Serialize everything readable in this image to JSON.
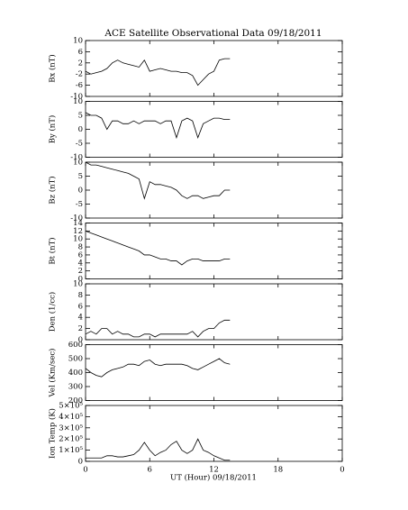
{
  "chart_data": [
    {
      "type": "line",
      "title": "ACE Satellite Observational Data  09/18/2011",
      "ylabel": "Bx (nT)",
      "x": [
        0,
        0.5,
        1,
        1.5,
        2,
        2.5,
        3,
        3.5,
        4,
        4.5,
        5,
        5.5,
        6,
        6.5,
        7,
        7.5,
        8,
        8.5,
        9,
        9.5,
        10,
        10.5,
        11,
        11.5,
        12,
        12.5,
        13,
        13.5
      ],
      "values": [
        -1,
        -2,
        -1.5,
        -1,
        0,
        2,
        3,
        2,
        1.5,
        1,
        0.5,
        3,
        -1,
        -0.5,
        0,
        -0.5,
        -1,
        -1,
        -1.5,
        -1.5,
        -2.5,
        -6,
        -4,
        -2,
        -1,
        3,
        3.5,
        3.5
      ],
      "ylim": [
        -10,
        10
      ],
      "yticks": [
        -10,
        -6,
        -2,
        2,
        6,
        10
      ],
      "color": "#000000"
    },
    {
      "type": "line",
      "ylabel": "By (nT)",
      "x": [
        0,
        0.5,
        1,
        1.5,
        2,
        2.5,
        3,
        3.5,
        4,
        4.5,
        5,
        5.5,
        6,
        6.5,
        7,
        7.5,
        8,
        8.5,
        9,
        9.5,
        10,
        10.5,
        11,
        11.5,
        12,
        12.5,
        13,
        13.5
      ],
      "values": [
        6,
        5,
        5,
        4,
        0,
        3,
        3,
        2,
        2,
        3,
        2,
        3,
        3,
        3,
        2,
        3,
        3,
        -3,
        3,
        4,
        3,
        -3,
        2,
        3,
        4,
        4,
        3.5,
        3.5
      ],
      "ylim": [
        -10,
        10
      ],
      "yticks": [
        -10,
        -5,
        0,
        5,
        10
      ],
      "color": "#000000"
    },
    {
      "type": "line",
      "ylabel": "Bz (nT)",
      "x": [
        0,
        0.5,
        1,
        1.5,
        2,
        2.5,
        3,
        3.5,
        4,
        4.5,
        5,
        5.5,
        6,
        6.5,
        7,
        7.5,
        8,
        8.5,
        9,
        9.5,
        10,
        10.5,
        11,
        11.5,
        12,
        12.5,
        13,
        13.5
      ],
      "values": [
        10,
        9,
        9,
        8.5,
        8,
        7.5,
        7,
        6.5,
        6,
        5,
        4,
        -3,
        3,
        2,
        2,
        1.5,
        1,
        0,
        -2,
        -3,
        -2,
        -2,
        -3,
        -2.5,
        -2,
        -2,
        0,
        0
      ],
      "ylim": [
        -10,
        10
      ],
      "yticks": [
        -10,
        -5,
        0,
        5,
        10
      ],
      "color": "#000000"
    },
    {
      "type": "line",
      "ylabel": "Bt (nT)",
      "x": [
        0,
        0.5,
        1,
        1.5,
        2,
        2.5,
        3,
        3.5,
        4,
        4.5,
        5,
        5.5,
        6,
        6.5,
        7,
        7.5,
        8,
        8.5,
        9,
        9.5,
        10,
        10.5,
        11,
        11.5,
        12,
        12.5,
        13,
        13.5
      ],
      "values": [
        12,
        11.5,
        11,
        10.5,
        10,
        9.5,
        9,
        8.5,
        8,
        7.5,
        7,
        6,
        6,
        5.5,
        5,
        5,
        4.5,
        4.5,
        3.5,
        4.5,
        5,
        5,
        4.5,
        4.5,
        4.5,
        4.5,
        5,
        5
      ],
      "ylim": [
        0,
        14
      ],
      "yticks": [
        0,
        2,
        4,
        6,
        8,
        10,
        12,
        14
      ],
      "color": "#000000"
    },
    {
      "type": "line",
      "ylabel": "Den (1/cc)",
      "x": [
        0,
        0.5,
        1,
        1.5,
        2,
        2.5,
        3,
        3.5,
        4,
        4.5,
        5,
        5.5,
        6,
        6.5,
        7,
        7.5,
        8,
        8.5,
        9,
        9.5,
        10,
        10.5,
        11,
        11.5,
        12,
        12.5,
        13,
        13.5
      ],
      "values": [
        1,
        1.5,
        1,
        2,
        2,
        1,
        1.5,
        1,
        1,
        0.5,
        0.5,
        1,
        1,
        0.5,
        1,
        1,
        1,
        1,
        1,
        1,
        1.5,
        0.5,
        1.5,
        2,
        2,
        3,
        3.5,
        3.5
      ],
      "ylim": [
        0,
        10
      ],
      "yticks": [
        0,
        2,
        4,
        6,
        8,
        10
      ],
      "color": "#000000"
    },
    {
      "type": "line",
      "ylabel": "Vel (Km/sec)",
      "x": [
        0,
        0.5,
        1,
        1.5,
        2,
        2.5,
        3,
        3.5,
        4,
        4.5,
        5,
        5.5,
        6,
        6.5,
        7,
        7.5,
        8,
        8.5,
        9,
        9.5,
        10,
        10.5,
        11,
        11.5,
        12,
        12.5,
        13,
        13.5
      ],
      "values": [
        430,
        400,
        380,
        370,
        400,
        420,
        430,
        440,
        460,
        460,
        450,
        480,
        490,
        460,
        450,
        460,
        460,
        460,
        460,
        450,
        430,
        420,
        440,
        460,
        480,
        500,
        470,
        460
      ],
      "ylim": [
        200,
        600
      ],
      "yticks": [
        200,
        300,
        400,
        500,
        600
      ],
      "color": "#000000"
    },
    {
      "type": "line",
      "ylabel": "Ion Temp (K)",
      "xlabel": "UT (Hour)  09/18/2011",
      "x": [
        0,
        0.5,
        1,
        1.5,
        2,
        2.5,
        3,
        3.5,
        4,
        4.5,
        5,
        5.5,
        6,
        6.5,
        7,
        7.5,
        8,
        8.5,
        9,
        9.5,
        10,
        10.5,
        11,
        11.5,
        12,
        12.5,
        13,
        13.5
      ],
      "values": [
        30000,
        30000,
        30000,
        30000,
        50000,
        50000,
        40000,
        40000,
        50000,
        60000,
        100000,
        170000,
        100000,
        50000,
        80000,
        100000,
        150000,
        180000,
        100000,
        70000,
        100000,
        200000,
        100000,
        80000,
        50000,
        30000,
        10000,
        10000
      ],
      "ylim": [
        0,
        500000
      ],
      "yticks": [
        0,
        {
          "value": 100000,
          "label": "1×10⁵"
        },
        {
          "value": 200000,
          "label": "2×10⁵"
        },
        {
          "value": 300000,
          "label": "3×10⁵"
        },
        {
          "value": 400000,
          "label": "4×10⁵"
        },
        {
          "value": 500000,
          "label": "5×10⁵"
        }
      ],
      "xlim": [
        0,
        24
      ],
      "xticks": [
        0,
        6,
        12,
        18,
        {
          "value": 24,
          "label": "0"
        }
      ],
      "color": "#000000"
    }
  ]
}
